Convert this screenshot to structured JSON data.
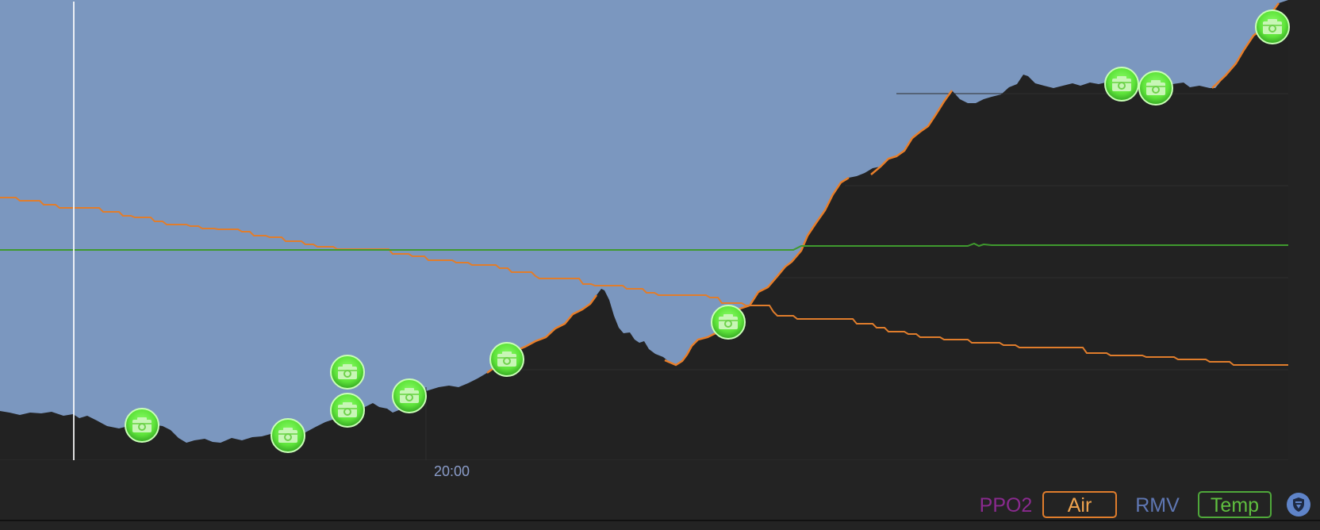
{
  "time_axis": {
    "label": "20:00"
  },
  "toggles": {
    "ppo2": "PPO2",
    "air": "Air",
    "rmv": "RMV",
    "temp": "Temp"
  },
  "colors": {
    "water": "#7b97bf",
    "seafloor": "#222222",
    "profile_line": "#e87f2b",
    "air_line": "#e07d2c",
    "temp_line": "#3f9a2e",
    "photo_marker": "#5ee33a",
    "shield_button": "#5f84c9"
  },
  "icons": {
    "photo_marker": "camera-icon",
    "filter_button": "shield-icon"
  }
}
